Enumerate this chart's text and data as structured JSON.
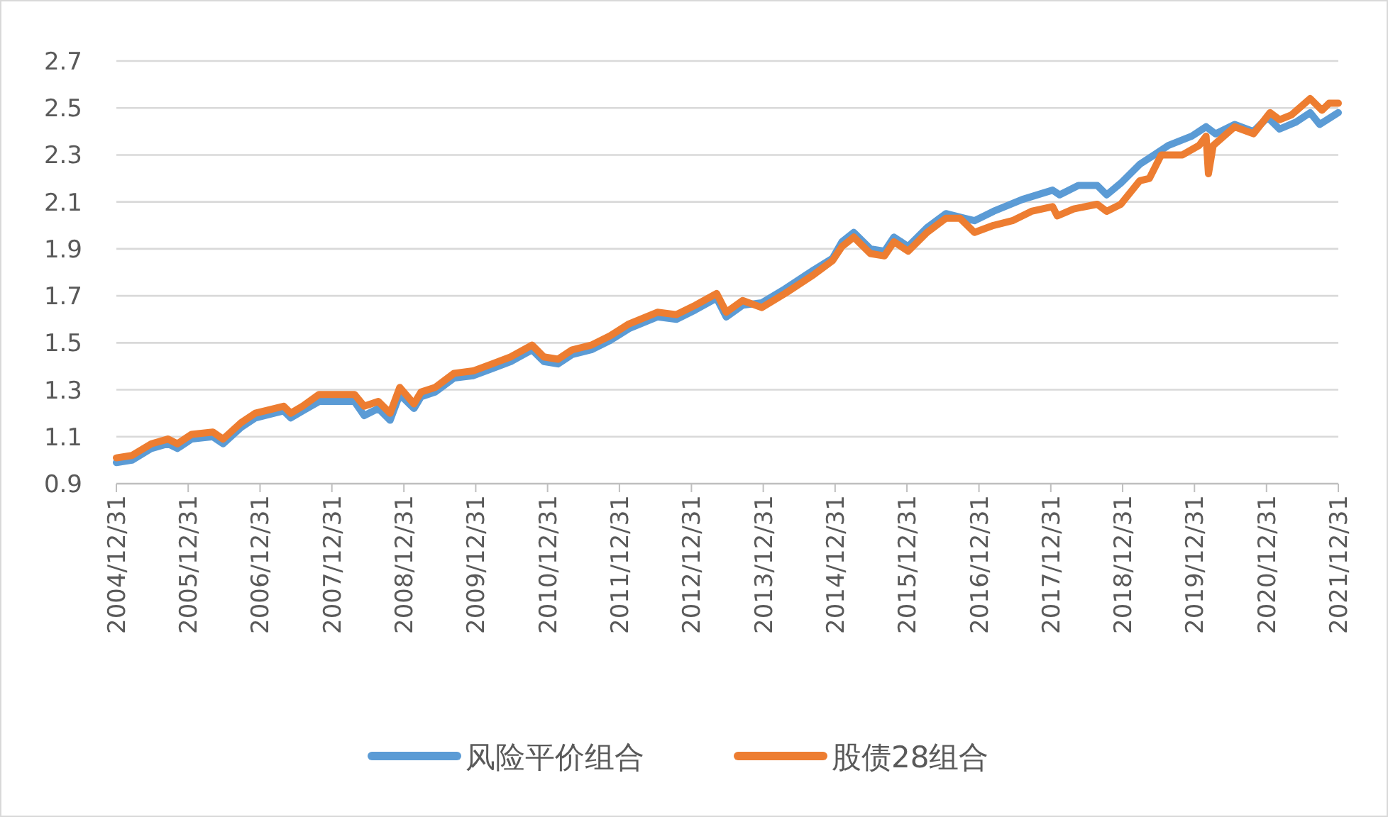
{
  "chart_data": {
    "type": "line",
    "grid": "y",
    "legend": "bottom",
    "marker": "none",
    "line_style": "solid",
    "xlim": [
      "2004-12-31",
      "2021-12-31"
    ],
    "xticks": [
      {
        "value": "2004-12-31",
        "label": "2004/12/31"
      },
      {
        "value": "2005-12-31",
        "label": "2005/12/31"
      },
      {
        "value": "2006-12-31",
        "label": "2006/12/31"
      },
      {
        "value": "2007-12-31",
        "label": "2007/12/31"
      },
      {
        "value": "2008-12-31",
        "label": "2008/12/31"
      },
      {
        "value": "2009-12-31",
        "label": "2009/12/31"
      },
      {
        "value": "2010-12-31",
        "label": "2010/12/31"
      },
      {
        "value": "2011-12-31",
        "label": "2011/12/31"
      },
      {
        "value": "2012-12-31",
        "label": "2012/12/31"
      },
      {
        "value": "2013-12-31",
        "label": "2013/12/31"
      },
      {
        "value": "2014-12-31",
        "label": "2014/12/31"
      },
      {
        "value": "2015-12-31",
        "label": "2015/12/31"
      },
      {
        "value": "2016-12-31",
        "label": "2016/12/31"
      },
      {
        "value": "2017-12-31",
        "label": "2017/12/31"
      },
      {
        "value": "2018-12-31",
        "label": "2018/12/31"
      },
      {
        "value": "2019-12-31",
        "label": "2019/12/31"
      },
      {
        "value": "2020-12-31",
        "label": "2020/12/31"
      },
      {
        "value": "2021-12-31",
        "label": "2021/12/31"
      }
    ],
    "ylim": [
      0.9,
      2.7
    ],
    "yticks": [
      0.9,
      1.1,
      1.3,
      1.5,
      1.7,
      1.9,
      2.1,
      2.3,
      2.5,
      2.7
    ],
    "series": [
      {
        "name": "风险平价组合",
        "color": "#5b9bd5",
        "x": [
          "2004-12-31",
          "2005-03-20",
          "2005-06-27",
          "2005-09-19",
          "2005-11-06",
          "2006-01-17",
          "2006-05-05",
          "2006-06-26",
          "2006-09-26",
          "2006-12-07",
          "2007-03-13",
          "2007-04-30",
          "2007-06-05",
          "2007-08-04",
          "2007-10-27",
          "2008-04-24",
          "2008-06-12",
          "2008-08-23",
          "2008-10-22",
          "2008-12-10",
          "2009-02-20",
          "2009-03-28",
          "2009-06-08",
          "2009-09-12",
          "2009-12-17",
          "2010-03-24",
          "2010-06-27",
          "2010-10-13",
          "2010-12-12",
          "2011-02-22",
          "2011-05-05",
          "2011-08-10",
          "2011-11-14",
          "2012-02-17",
          "2012-07-11",
          "2012-10-16",
          "2013-01-20",
          "2013-05-08",
          "2013-06-26",
          "2013-09-17",
          "2013-12-23",
          "2014-04-21",
          "2014-09-13",
          "2014-12-18",
          "2015-02-04",
          "2015-04-05",
          "2015-06-28",
          "2015-09-08",
          "2015-10-26",
          "2016-01-06",
          "2016-04-11",
          "2016-07-16",
          "2016-10-20",
          "2016-12-08",
          "2017-03-15",
          "2017-08-07",
          "2018-01-09",
          "2018-02-14",
          "2018-05-20",
          "2018-08-24",
          "2018-10-11",
          "2018-12-22",
          "2019-03-28",
          "2019-06-09",
          "2019-08-20",
          "2019-12-18",
          "2020-02-28",
          "2020-04-16",
          "2020-07-22",
          "2020-10-26",
          "2021-01-06",
          "2021-03-07",
          "2021-05-30",
          "2021-08-10",
          "2021-09-27",
          "2021-12-31"
        ],
        "values": [
          0.99,
          1.0,
          1.05,
          1.07,
          1.05,
          1.09,
          1.1,
          1.07,
          1.14,
          1.18,
          1.2,
          1.21,
          1.18,
          1.21,
          1.25,
          1.25,
          1.19,
          1.22,
          1.17,
          1.28,
          1.22,
          1.27,
          1.29,
          1.35,
          1.36,
          1.39,
          1.42,
          1.47,
          1.42,
          1.41,
          1.45,
          1.47,
          1.51,
          1.56,
          1.61,
          1.6,
          1.64,
          1.69,
          1.61,
          1.66,
          1.67,
          1.73,
          1.81,
          1.86,
          1.93,
          1.97,
          1.9,
          1.89,
          1.95,
          1.91,
          1.99,
          2.05,
          2.03,
          2.02,
          2.06,
          2.11,
          2.15,
          2.13,
          2.17,
          2.17,
          2.13,
          2.18,
          2.26,
          2.3,
          2.34,
          2.38,
          2.42,
          2.39,
          2.43,
          2.4,
          2.46,
          2.41,
          2.44,
          2.48,
          2.43,
          2.48
        ]
      },
      {
        "name": "股债28组合",
        "color": "#ed7d31",
        "x": [
          "2004-12-31",
          "2005-03-20",
          "2005-06-27",
          "2005-09-19",
          "2005-11-06",
          "2006-01-17",
          "2006-05-05",
          "2006-06-26",
          "2006-09-26",
          "2006-12-07",
          "2007-03-13",
          "2007-04-30",
          "2007-06-05",
          "2007-08-04",
          "2007-10-27",
          "2008-04-24",
          "2008-06-12",
          "2008-08-23",
          "2008-10-22",
          "2008-12-10",
          "2009-02-20",
          "2009-03-28",
          "2009-06-08",
          "2009-09-12",
          "2009-12-17",
          "2010-03-24",
          "2010-06-27",
          "2010-10-13",
          "2010-12-12",
          "2011-02-22",
          "2011-05-05",
          "2011-08-10",
          "2011-11-14",
          "2012-02-17",
          "2012-07-11",
          "2012-10-16",
          "2013-01-20",
          "2013-05-08",
          "2013-06-26",
          "2013-09-17",
          "2013-12-23",
          "2014-04-21",
          "2014-09-13",
          "2014-12-18",
          "2015-02-04",
          "2015-04-05",
          "2015-06-28",
          "2015-09-08",
          "2015-10-26",
          "2016-01-06",
          "2016-04-11",
          "2016-07-16",
          "2016-09-26",
          "2016-12-08",
          "2017-03-15",
          "2017-06-19",
          "2017-09-24",
          "2018-01-09",
          "2018-02-02",
          "2018-04-26",
          "2018-08-24",
          "2018-10-11",
          "2018-12-22",
          "2019-03-28",
          "2019-05-16",
          "2019-07-15",
          "2019-10-31",
          "2020-01-23",
          "2020-02-28",
          "2020-03-11",
          "2020-04-04",
          "2020-07-22",
          "2020-10-26",
          "2021-01-18",
          "2021-03-07",
          "2021-05-06",
          "2021-08-10",
          "2021-10-09",
          "2021-11-14",
          "2021-12-31"
        ],
        "values": [
          1.01,
          1.02,
          1.07,
          1.09,
          1.07,
          1.11,
          1.12,
          1.09,
          1.16,
          1.2,
          1.22,
          1.23,
          1.2,
          1.23,
          1.28,
          1.28,
          1.23,
          1.25,
          1.2,
          1.31,
          1.24,
          1.29,
          1.31,
          1.37,
          1.38,
          1.41,
          1.44,
          1.49,
          1.44,
          1.43,
          1.47,
          1.49,
          1.53,
          1.58,
          1.63,
          1.62,
          1.66,
          1.71,
          1.63,
          1.68,
          1.65,
          1.71,
          1.79,
          1.85,
          1.91,
          1.95,
          1.88,
          1.87,
          1.93,
          1.89,
          1.97,
          2.03,
          2.03,
          1.97,
          2.0,
          2.02,
          2.06,
          2.08,
          2.04,
          2.07,
          2.09,
          2.06,
          2.09,
          2.19,
          2.2,
          2.3,
          2.3,
          2.34,
          2.38,
          2.22,
          2.34,
          2.42,
          2.39,
          2.48,
          2.45,
          2.47,
          2.54,
          2.49,
          2.52,
          2.52
        ]
      }
    ]
  }
}
